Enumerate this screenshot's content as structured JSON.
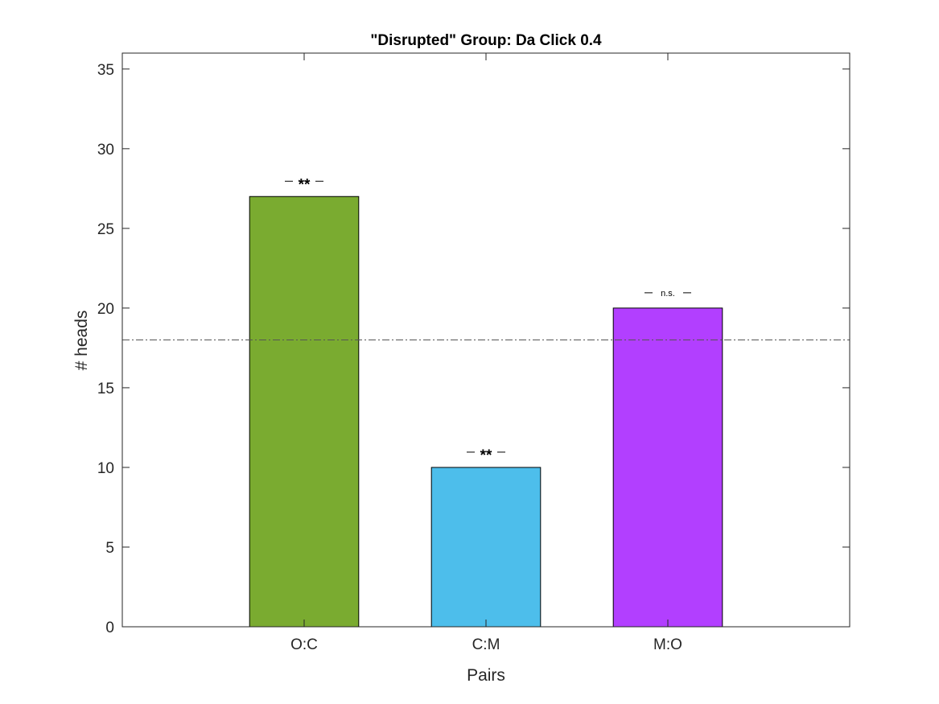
{
  "chart_data": {
    "type": "bar",
    "title": "\"Disrupted\" Group: Da Click 0.4",
    "xlabel": "Pairs",
    "ylabel": "# heads",
    "categories": [
      "O:C",
      "C:M",
      "M:O"
    ],
    "values": [
      27,
      10,
      20
    ],
    "bar_colors": [
      "#7aab30",
      "#4dbeeb",
      "#b23fff"
    ],
    "significance": [
      "**",
      "**",
      "n.s."
    ],
    "reference_line": 18,
    "ylim": [
      0,
      35
    ],
    "yticks": [
      "0",
      "5",
      "10",
      "15",
      "20",
      "25",
      "30",
      "35"
    ],
    "grid": false,
    "legend": "none"
  }
}
